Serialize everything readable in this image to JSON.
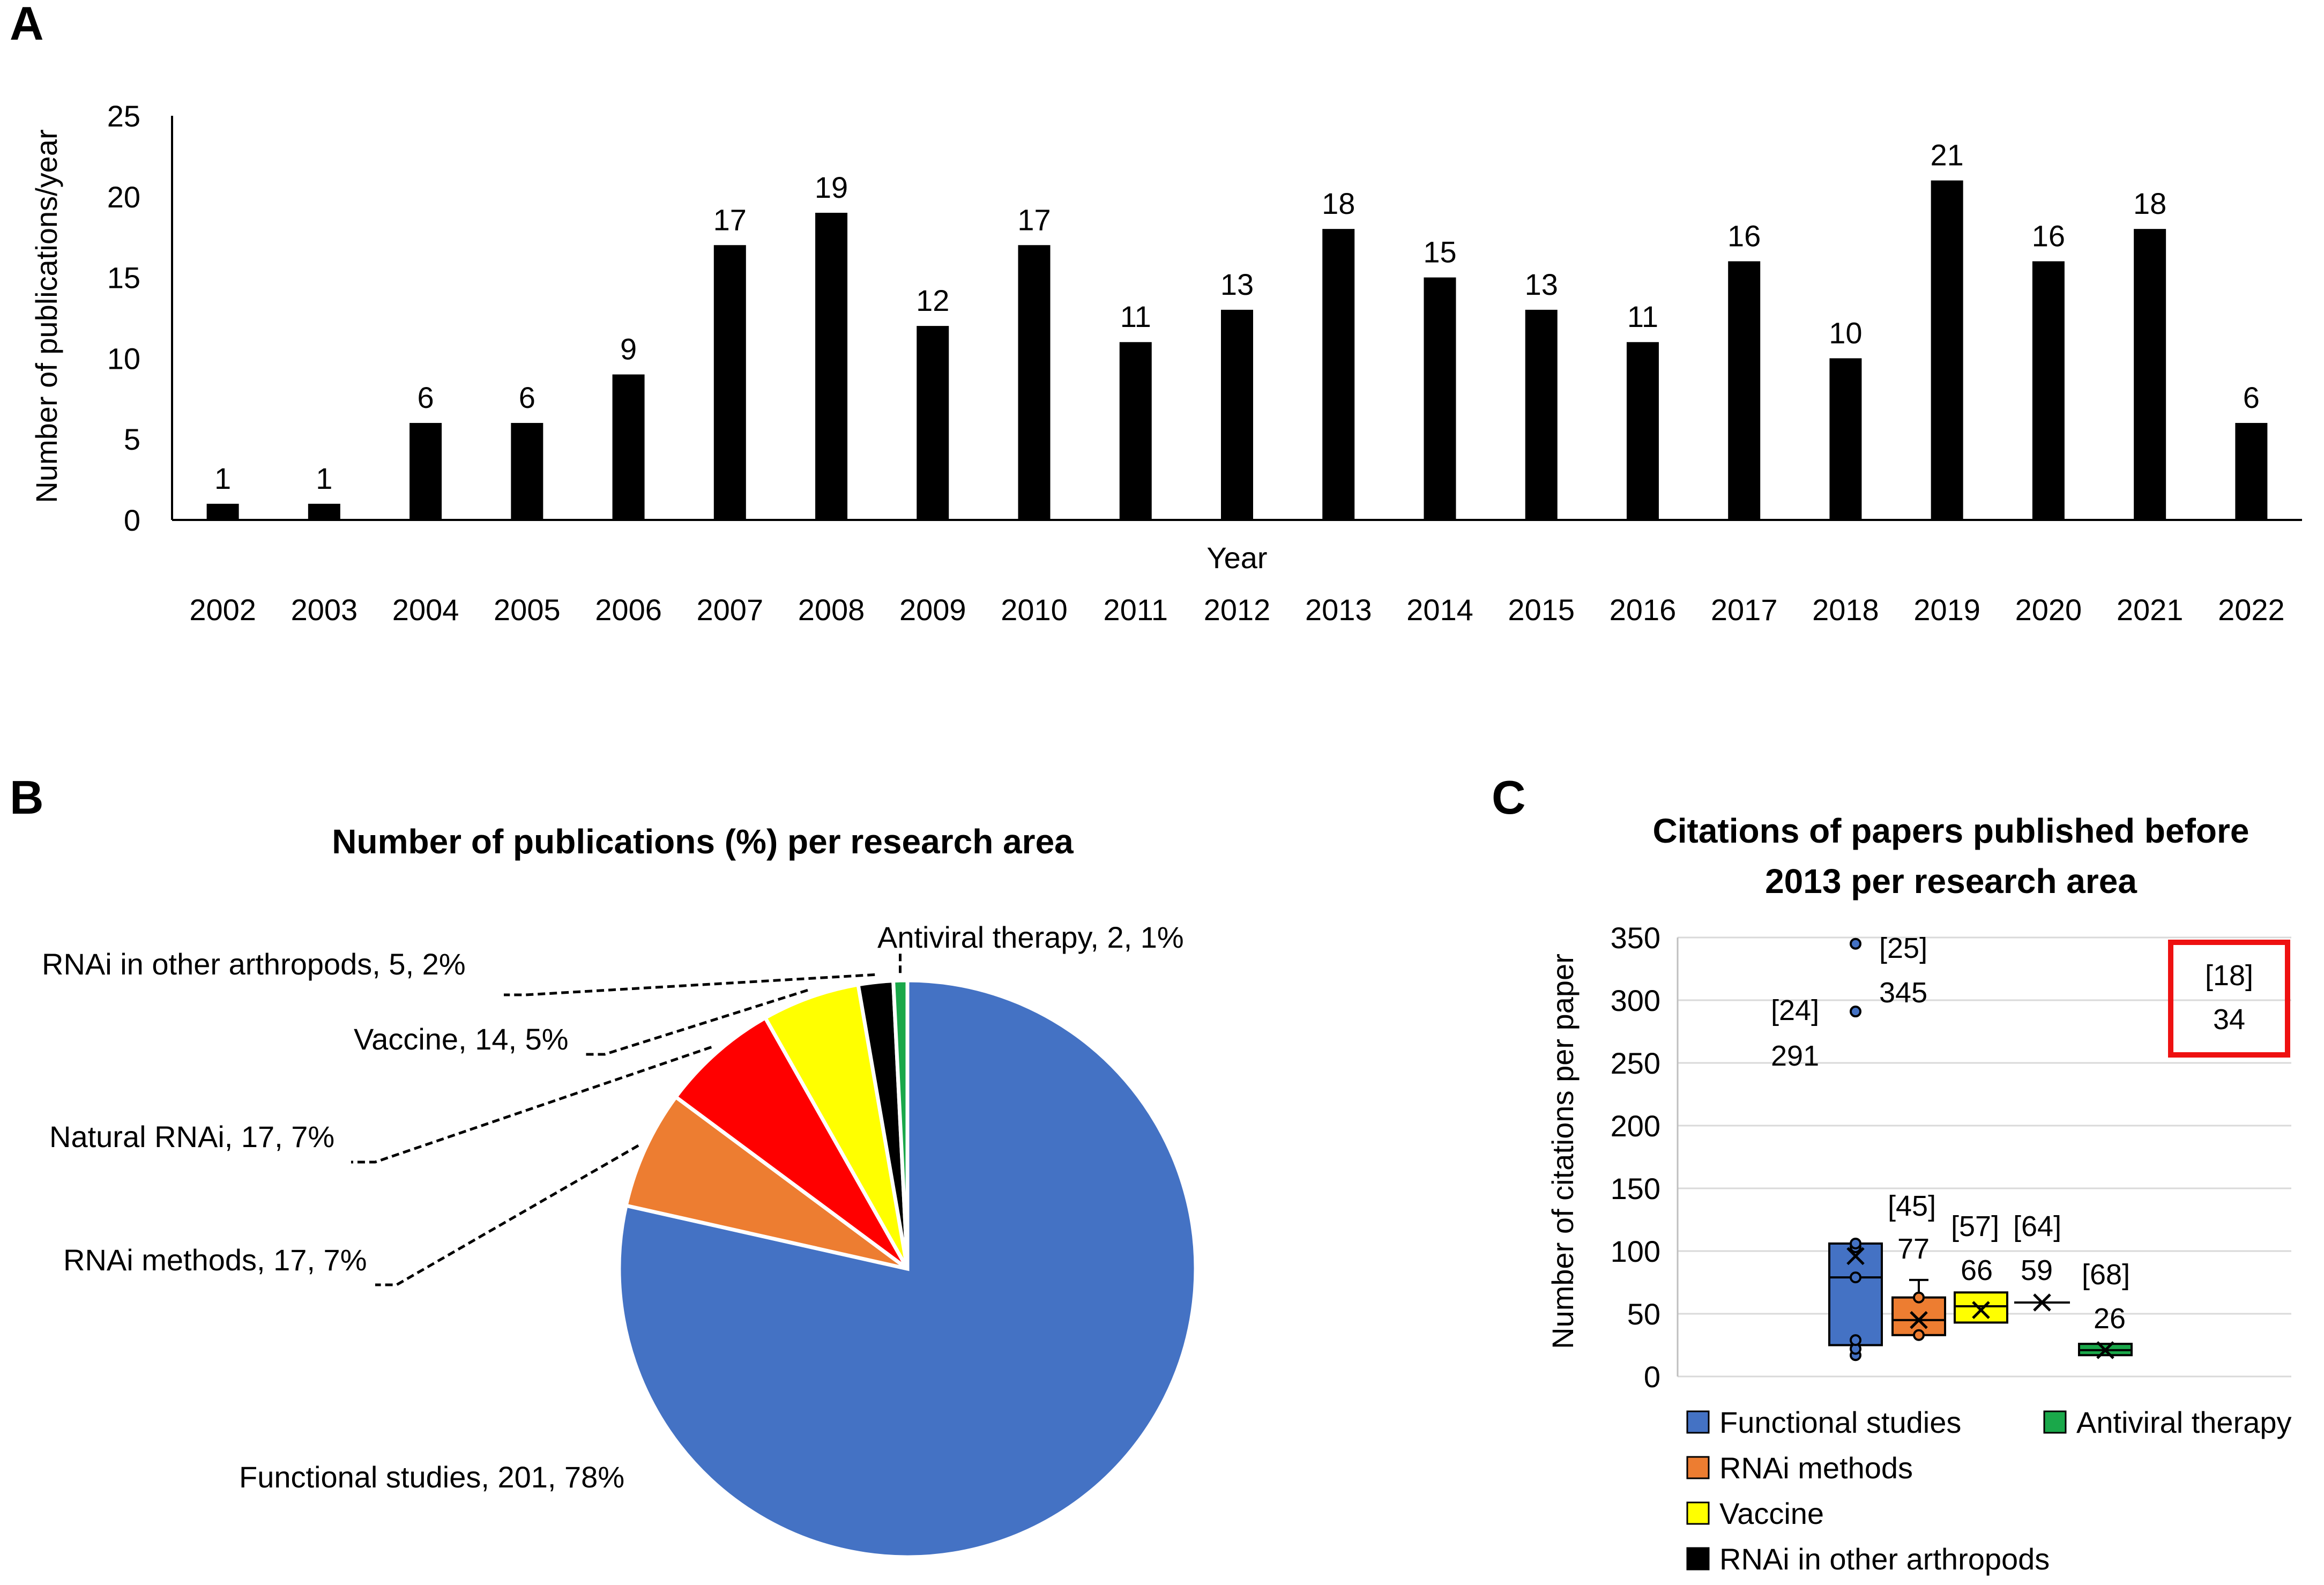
{
  "panels": {
    "a": "A",
    "b": "B",
    "c": "C"
  },
  "colors": {
    "bar": "#000000",
    "functional": "#4472C4",
    "methods": "#ED7D31",
    "natural": "#FF0000",
    "vaccine": "#FFFF00",
    "arthropods": "#000000",
    "antiviral": "#1AA84A",
    "highlight": "#EE1111",
    "grid": "#D9D9D9"
  },
  "chart_data": [
    {
      "id": "A",
      "type": "bar",
      "title": "",
      "xlabel": "Year",
      "ylabel": "Number of publications/year",
      "ylim": [
        0,
        25
      ],
      "yticks": [
        "0",
        "5",
        "10",
        "15",
        "20",
        "25"
      ],
      "categories": [
        "2002",
        "2003",
        "2004",
        "2005",
        "2006",
        "2007",
        "2008",
        "2009",
        "2010",
        "2011",
        "2012",
        "2013",
        "2014",
        "2015",
        "2016",
        "2017",
        "2018",
        "2019",
        "2020",
        "2021",
        "2022"
      ],
      "values": [
        1,
        1,
        6,
        6,
        9,
        17,
        19,
        12,
        17,
        11,
        13,
        18,
        15,
        13,
        11,
        16,
        10,
        21,
        16,
        18,
        6
      ],
      "labels": [
        "1",
        "1",
        "6",
        "6",
        "9",
        "17",
        "19",
        "12",
        "17",
        "11",
        "13",
        "18",
        "15",
        "13",
        "11",
        "16",
        "10",
        "21",
        "16",
        "18",
        "6"
      ]
    },
    {
      "id": "B",
      "type": "pie",
      "title": "Number of publications (%) per research area",
      "slices": [
        {
          "name": "Functional studies",
          "value": 201,
          "percent": 78,
          "label": "Functional studies, 201, 78%"
        },
        {
          "name": "RNAi methods",
          "value": 17,
          "percent": 7,
          "label": "RNAi methods, 17, 7%"
        },
        {
          "name": "Natural RNAi",
          "value": 17,
          "percent": 7,
          "label": "Natural RNAi, 17, 7%"
        },
        {
          "name": "Vaccine",
          "value": 14,
          "percent": 5,
          "label": "Vaccine, 14, 5%"
        },
        {
          "name": "RNAi in other arthropods",
          "value": 5,
          "percent": 2,
          "label": "RNAi in other arthropods, 5, 2%"
        },
        {
          "name": "Antiviral therapy",
          "value": 2,
          "percent": 1,
          "label": "Antiviral therapy, 2, 1%"
        }
      ]
    },
    {
      "id": "C",
      "type": "box",
      "title_lines": [
        "Citations of papers published before",
        "2013 per research area"
      ],
      "ylabel": "Number of citations per paper",
      "ylim": [
        0,
        350
      ],
      "yticks": [
        "0",
        "50",
        "100",
        "150",
        "200",
        "250",
        "300",
        "350"
      ],
      "series": [
        {
          "name": "Functional studies",
          "q1": 25,
          "median": 79,
          "q3": 106,
          "mean": 96,
          "points": [
            17,
            22,
            29,
            79,
            103,
            106
          ],
          "outliers": [
            291,
            345
          ]
        },
        {
          "name": "RNAi methods",
          "q1": 33,
          "median": 45,
          "q3": 63,
          "mean": 45,
          "whisker_high": 77,
          "points": [
            33,
            63
          ]
        },
        {
          "name": "Vaccine",
          "q1": 43,
          "median": 56,
          "q3": 67,
          "mean": 53
        },
        {
          "name": "RNAi in other arthropods",
          "mean": 59,
          "single": true
        },
        {
          "name": "Antiviral therapy",
          "q1": 17,
          "median": 21,
          "q3": 26,
          "mean": 21
        }
      ],
      "annotations": [
        "[25]",
        "345",
        "[24]",
        "291",
        "[45]",
        "77",
        "[57]",
        "[64]",
        "66",
        "59",
        "[68]",
        "26"
      ],
      "highlight_box": [
        "[18]",
        "34"
      ],
      "legend": [
        "Functional studies",
        "Antiviral therapy",
        "RNAi methods",
        "Vaccine",
        "RNAi in other arthropods"
      ]
    }
  ]
}
